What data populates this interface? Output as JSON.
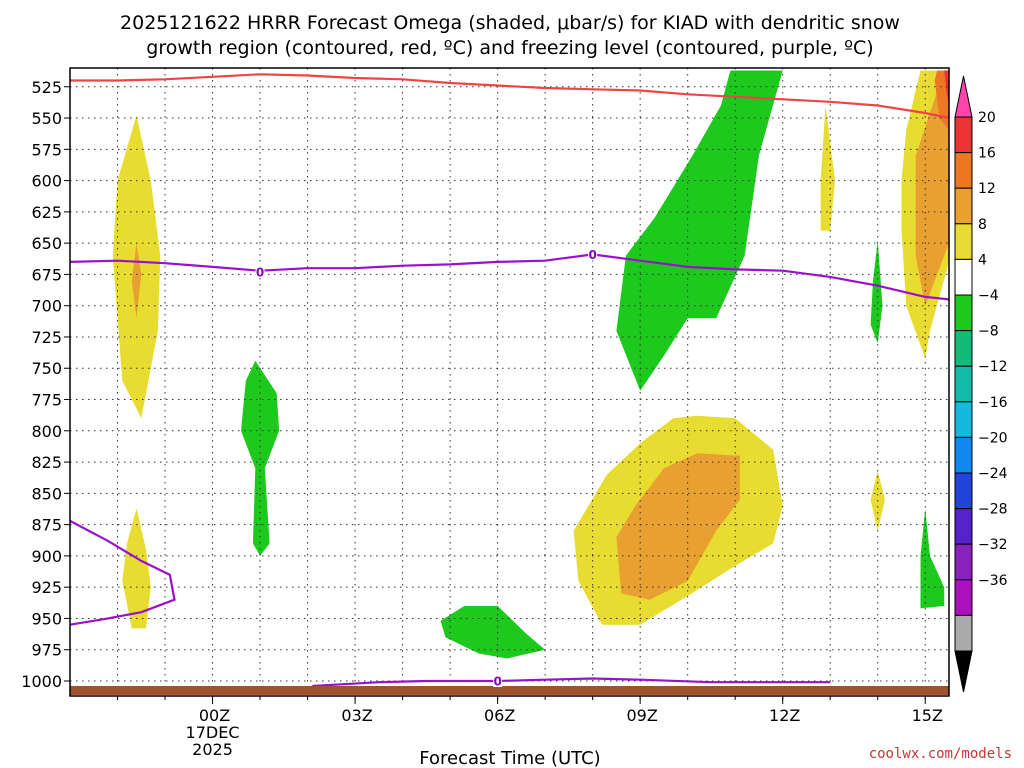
{
  "chart_data": {
    "type": "time-height contour",
    "title_line1": "2025121622 HRRR Forecast Omega (shaded, μbar/s) for KIAD with dendritic snow",
    "title_line2": "growth region (contoured, red, ºC) and freezing level (contoured, purple, ºC)",
    "xlabel": "Forecast Time (UTC)",
    "credit": "coolwx.com/models",
    "x_domain_hours": [
      -3.0,
      15.5
    ],
    "y_domain_hpa": [
      1012,
      510
    ],
    "x_ticks": [
      {
        "hour": 0,
        "label": "00Z",
        "sub1": "17DEC",
        "sub2": "2025"
      },
      {
        "hour": 3,
        "label": "03Z",
        "sub1": "",
        "sub2": ""
      },
      {
        "hour": 6,
        "label": "06Z",
        "sub1": "",
        "sub2": ""
      },
      {
        "hour": 9,
        "label": "09Z",
        "sub1": "",
        "sub2": ""
      },
      {
        "hour": 12,
        "label": "12Z",
        "sub1": "",
        "sub2": ""
      },
      {
        "hour": 15,
        "label": "15Z",
        "sub1": "",
        "sub2": ""
      }
    ],
    "y_ticks": [
      {
        "p": 525,
        "label": "525"
      },
      {
        "p": 550,
        "label": "550"
      },
      {
        "p": 575,
        "label": "575"
      },
      {
        "p": 600,
        "label": "600"
      },
      {
        "p": 625,
        "label": "625"
      },
      {
        "p": 650,
        "label": "650"
      },
      {
        "p": 675,
        "label": "675"
      },
      {
        "p": 700,
        "label": "700"
      },
      {
        "p": 725,
        "label": "725"
      },
      {
        "p": 750,
        "label": "750"
      },
      {
        "p": 775,
        "label": "775"
      },
      {
        "p": 800,
        "label": "800"
      },
      {
        "p": 825,
        "label": "825"
      },
      {
        "p": 850,
        "label": "850"
      },
      {
        "p": 875,
        "label": "875"
      },
      {
        "p": 900,
        "label": "900"
      },
      {
        "p": 925,
        "label": "925"
      },
      {
        "p": 950,
        "label": "950"
      },
      {
        "p": 975,
        "label": "975"
      },
      {
        "p": 1000,
        "label": "1000"
      }
    ],
    "colorbar": {
      "bins": [
        {
          "color": "#ff44aa"
        },
        {
          "color": "#ee3333"
        },
        {
          "color": "#ee7722"
        },
        {
          "color": "#e8a030"
        },
        {
          "color": "#e8dc30"
        },
        {
          "color": "#ffffff"
        },
        {
          "color": "#1ec91e"
        },
        {
          "color": "#11bb77"
        },
        {
          "color": "#11bbaa"
        },
        {
          "color": "#11bbdd"
        },
        {
          "color": "#1188ee"
        },
        {
          "color": "#2244dd"
        },
        {
          "color": "#5522cc"
        },
        {
          "color": "#8822bb"
        },
        {
          "color": "#aa11bb"
        },
        {
          "color": "#aaaaaa"
        },
        {
          "color": "#000000"
        }
      ],
      "labels": [
        "20",
        "16",
        "12",
        "8",
        "4",
        "−4",
        "−8",
        "−12",
        "−16",
        "−20",
        "−24",
        "−28",
        "−32",
        "−36"
      ]
    },
    "terrain_color": "#a0522d",
    "omega_regions": [
      {
        "name": "yellow-lobe-left",
        "color": "#e8dc30",
        "points": [
          [
            -1.6,
            548
          ],
          [
            -1.3,
            600
          ],
          [
            -1.1,
            660
          ],
          [
            -1.15,
            720
          ],
          [
            -1.5,
            790
          ],
          [
            -1.9,
            760
          ],
          [
            -2.1,
            660
          ],
          [
            -2.0,
            600
          ]
        ]
      },
      {
        "name": "orange-core-left",
        "color": "#e8a030",
        "points": [
          [
            -1.6,
            650
          ],
          [
            -1.5,
            675
          ],
          [
            -1.6,
            710
          ],
          [
            -1.7,
            680
          ]
        ]
      },
      {
        "name": "yellow-low-left",
        "color": "#e8dc30",
        "points": [
          [
            -1.6,
            862
          ],
          [
            -1.4,
            895
          ],
          [
            -1.3,
            925
          ],
          [
            -1.4,
            958
          ],
          [
            -1.7,
            958
          ],
          [
            -1.9,
            920
          ],
          [
            -1.8,
            890
          ]
        ]
      },
      {
        "name": "green-left",
        "color": "#1ec91e",
        "points": [
          [
            0.9,
            744
          ],
          [
            1.35,
            770
          ],
          [
            1.4,
            800
          ],
          [
            1.1,
            830
          ],
          [
            1.2,
            890
          ],
          [
            1.0,
            900
          ],
          [
            0.85,
            890
          ],
          [
            0.9,
            830
          ],
          [
            0.6,
            800
          ],
          [
            0.7,
            760
          ]
        ]
      },
      {
        "name": "green-tall",
        "color": "#1ec91e",
        "points": [
          [
            10.9,
            512
          ],
          [
            12.0,
            512
          ],
          [
            11.5,
            580
          ],
          [
            11.2,
            660
          ],
          [
            10.6,
            710
          ],
          [
            10.0,
            710
          ],
          [
            9.5,
            740
          ],
          [
            9.0,
            768
          ],
          [
            8.5,
            720
          ],
          [
            8.7,
            660
          ],
          [
            9.3,
            630
          ],
          [
            10.1,
            580
          ],
          [
            10.7,
            540
          ]
        ]
      },
      {
        "name": "green-bottom",
        "color": "#1ec91e",
        "points": [
          [
            5.3,
            940
          ],
          [
            6.0,
            940
          ],
          [
            6.6,
            962
          ],
          [
            7.0,
            975
          ],
          [
            6.2,
            982
          ],
          [
            5.6,
            978
          ],
          [
            4.9,
            965
          ],
          [
            4.8,
            952
          ]
        ]
      },
      {
        "name": "yellow-middle",
        "color": "#e8dc30",
        "points": [
          [
            10.2,
            788
          ],
          [
            11.0,
            790
          ],
          [
            11.8,
            815
          ],
          [
            12.0,
            860
          ],
          [
            11.8,
            890
          ],
          [
            11.0,
            908
          ],
          [
            10.0,
            932
          ],
          [
            9.0,
            955
          ],
          [
            8.2,
            955
          ],
          [
            7.7,
            920
          ],
          [
            7.6,
            880
          ],
          [
            8.3,
            835
          ],
          [
            9.0,
            810
          ],
          [
            9.7,
            790
          ]
        ]
      },
      {
        "name": "orange-middle",
        "color": "#e8a030",
        "points": [
          [
            10.2,
            818
          ],
          [
            11.1,
            820
          ],
          [
            11.1,
            855
          ],
          [
            10.6,
            880
          ],
          [
            10.0,
            920
          ],
          [
            9.2,
            935
          ],
          [
            8.6,
            930
          ],
          [
            8.5,
            885
          ],
          [
            8.9,
            860
          ],
          [
            9.5,
            830
          ]
        ]
      },
      {
        "name": "yellow-sliver-13z",
        "color": "#e8dc30",
        "points": [
          [
            12.9,
            540
          ],
          [
            13.1,
            600
          ],
          [
            13.0,
            640
          ],
          [
            12.8,
            640
          ],
          [
            12.8,
            600
          ]
        ]
      },
      {
        "name": "green-sliver-14z",
        "color": "#1ec91e",
        "points": [
          [
            14.0,
            648
          ],
          [
            14.1,
            700
          ],
          [
            14.0,
            730
          ],
          [
            13.85,
            715
          ],
          [
            13.9,
            680
          ]
        ]
      },
      {
        "name": "yellow-blob-14z",
        "color": "#e8dc30",
        "points": [
          [
            14.0,
            832
          ],
          [
            14.15,
            855
          ],
          [
            14.0,
            880
          ],
          [
            13.85,
            855
          ]
        ]
      },
      {
        "name": "green-blob-15z",
        "color": "#1ec91e",
        "points": [
          [
            15.0,
            862
          ],
          [
            15.1,
            900
          ],
          [
            15.4,
            925
          ],
          [
            15.4,
            940
          ],
          [
            14.9,
            942
          ],
          [
            14.9,
            900
          ]
        ]
      },
      {
        "name": "yellow-right",
        "color": "#e8dc30",
        "points": [
          [
            14.9,
            512
          ],
          [
            15.5,
            512
          ],
          [
            15.5,
            665
          ],
          [
            15.1,
            720
          ],
          [
            15.0,
            742
          ],
          [
            14.6,
            700
          ],
          [
            14.5,
            640
          ],
          [
            14.5,
            600
          ],
          [
            14.6,
            560
          ]
        ]
      },
      {
        "name": "orange-right",
        "color": "#e8a030",
        "points": [
          [
            15.4,
            512
          ],
          [
            15.5,
            512
          ],
          [
            15.5,
            650
          ],
          [
            15.0,
            700
          ],
          [
            14.8,
            660
          ],
          [
            14.8,
            580
          ]
        ]
      },
      {
        "name": "orange-deep-right",
        "color": "#ee7722",
        "points": [
          [
            15.25,
            512
          ],
          [
            15.5,
            512
          ],
          [
            15.5,
            560
          ],
          [
            15.3,
            550
          ],
          [
            15.2,
            520
          ]
        ]
      },
      {
        "name": "red-corner-right",
        "color": "#ee3333",
        "points": [
          [
            15.4,
            512
          ],
          [
            15.5,
            512
          ],
          [
            15.5,
            540
          ],
          [
            15.45,
            530
          ]
        ]
      }
    ],
    "dgz_line": {
      "color": "#ee4444",
      "points": [
        [
          -3,
          520
        ],
        [
          -2.0,
          520
        ],
        [
          -1.0,
          519
        ],
        [
          0,
          517
        ],
        [
          1.0,
          515
        ],
        [
          2.0,
          516
        ],
        [
          3.0,
          518
        ],
        [
          4.0,
          519
        ],
        [
          5.0,
          522
        ],
        [
          6.0,
          524
        ],
        [
          7.0,
          526
        ],
        [
          8.0,
          527
        ],
        [
          9.0,
          528
        ],
        [
          10.0,
          531
        ],
        [
          11.0,
          533
        ],
        [
          12.0,
          535
        ],
        [
          13.0,
          537
        ],
        [
          14.0,
          540
        ],
        [
          15.0,
          546
        ],
        [
          15.5,
          550
        ]
      ]
    },
    "freezing_lines": [
      {
        "color": "#9911cc",
        "points": [
          [
            -3,
            665
          ],
          [
            -2.0,
            664
          ],
          [
            -1.0,
            666
          ],
          [
            0,
            669
          ],
          [
            1.0,
            672
          ],
          [
            2.0,
            670
          ],
          [
            3.0,
            670
          ],
          [
            4.0,
            668
          ],
          [
            5.0,
            667
          ],
          [
            6.0,
            665
          ],
          [
            7.0,
            664
          ],
          [
            8.0,
            659
          ],
          [
            9.0,
            664
          ],
          [
            10.0,
            669
          ],
          [
            11.0,
            671
          ],
          [
            12.0,
            672
          ],
          [
            13.0,
            677
          ],
          [
            14.0,
            684
          ],
          [
            15.0,
            693
          ],
          [
            15.5,
            695
          ]
        ]
      },
      {
        "color": "#9911cc",
        "points": [
          [
            -3,
            872
          ],
          [
            -2.2,
            888
          ],
          [
            -1.5,
            904
          ],
          [
            -0.9,
            915
          ],
          [
            -0.8,
            935
          ],
          [
            -1.5,
            945
          ],
          [
            -2.2,
            950
          ],
          [
            -3,
            955
          ]
        ]
      },
      {
        "color": "#9911cc",
        "points": [
          [
            2.1,
            1004
          ],
          [
            3.5,
            1001
          ],
          [
            4.5,
            1000
          ],
          [
            6.0,
            1000
          ],
          [
            7.0,
            999
          ],
          [
            8.0,
            998
          ],
          [
            9.0,
            999
          ],
          [
            10.5,
            1001
          ],
          [
            12.0,
            1001
          ],
          [
            13.0,
            1001
          ]
        ]
      }
    ],
    "contour_labels": [
      {
        "text": "0",
        "hour": 1.0,
        "p": 673
      },
      {
        "text": "0",
        "hour": 8.0,
        "p": 659
      },
      {
        "text": "0",
        "hour": 6.0,
        "p": 1000
      }
    ]
  }
}
